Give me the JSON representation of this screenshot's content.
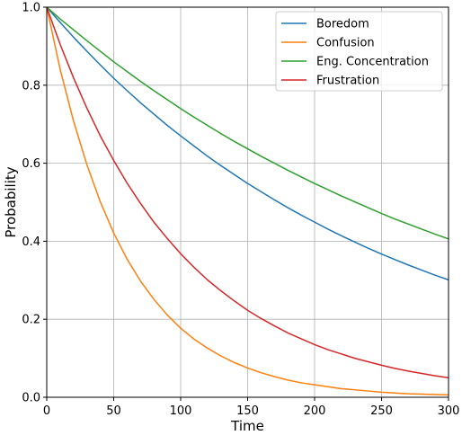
{
  "chart_data": {
    "type": "line",
    "title": "",
    "xlabel": "Time",
    "ylabel": "Probability",
    "xlim": [
      0,
      300
    ],
    "ylim": [
      0,
      1.0
    ],
    "xticks": [
      0,
      50,
      100,
      150,
      200,
      250,
      300
    ],
    "xtick_labels": [
      "0",
      "50",
      "100",
      "150",
      "200",
      "250",
      "300"
    ],
    "yticks": [
      0.0,
      0.2,
      0.4,
      0.6,
      0.8,
      1.0
    ],
    "ytick_labels": [
      "0.0",
      "0.2",
      "0.4",
      "0.6",
      "0.8",
      "1.0"
    ],
    "grid": true,
    "legend_position": "upper right",
    "x": [
      0,
      10,
      20,
      30,
      40,
      50,
      60,
      70,
      80,
      90,
      100,
      110,
      120,
      130,
      140,
      150,
      160,
      170,
      180,
      190,
      200,
      210,
      220,
      230,
      240,
      250,
      260,
      270,
      280,
      290,
      300
    ],
    "series": [
      {
        "name": "Boredom",
        "color": "#1f77b4",
        "values": [
          1.0,
          0.961,
          0.923,
          0.887,
          0.852,
          0.818,
          0.786,
          0.755,
          0.726,
          0.697,
          0.67,
          0.644,
          0.618,
          0.594,
          0.571,
          0.548,
          0.527,
          0.506,
          0.486,
          0.467,
          0.449,
          0.431,
          0.414,
          0.398,
          0.382,
          0.367,
          0.353,
          0.339,
          0.326,
          0.313,
          0.301
        ]
      },
      {
        "name": "Confusion",
        "color": "#ff7f0e",
        "values": [
          1.0,
          0.841,
          0.708,
          0.596,
          0.501,
          0.421,
          0.354,
          0.298,
          0.251,
          0.211,
          0.177,
          0.149,
          0.126,
          0.106,
          0.089,
          0.075,
          0.063,
          0.053,
          0.044,
          0.037,
          0.032,
          0.027,
          0.022,
          0.019,
          0.016,
          0.013,
          0.011,
          0.009,
          0.008,
          0.007,
          0.006
        ]
      },
      {
        "name": "Eng. Concentration",
        "color": "#2ca02c",
        "values": [
          1.0,
          0.97,
          0.942,
          0.914,
          0.887,
          0.86,
          0.835,
          0.81,
          0.786,
          0.763,
          0.74,
          0.718,
          0.697,
          0.676,
          0.656,
          0.637,
          0.618,
          0.6,
          0.582,
          0.565,
          0.548,
          0.532,
          0.516,
          0.501,
          0.486,
          0.471,
          0.457,
          0.444,
          0.431,
          0.418,
          0.406
        ]
      },
      {
        "name": "Frustration",
        "color": "#d62728",
        "values": [
          1.0,
          0.905,
          0.819,
          0.741,
          0.67,
          0.607,
          0.549,
          0.497,
          0.449,
          0.407,
          0.368,
          0.333,
          0.301,
          0.273,
          0.247,
          0.223,
          0.202,
          0.183,
          0.165,
          0.15,
          0.135,
          0.122,
          0.111,
          0.1,
          0.091,
          0.082,
          0.074,
          0.067,
          0.061,
          0.055,
          0.05
        ]
      }
    ]
  }
}
